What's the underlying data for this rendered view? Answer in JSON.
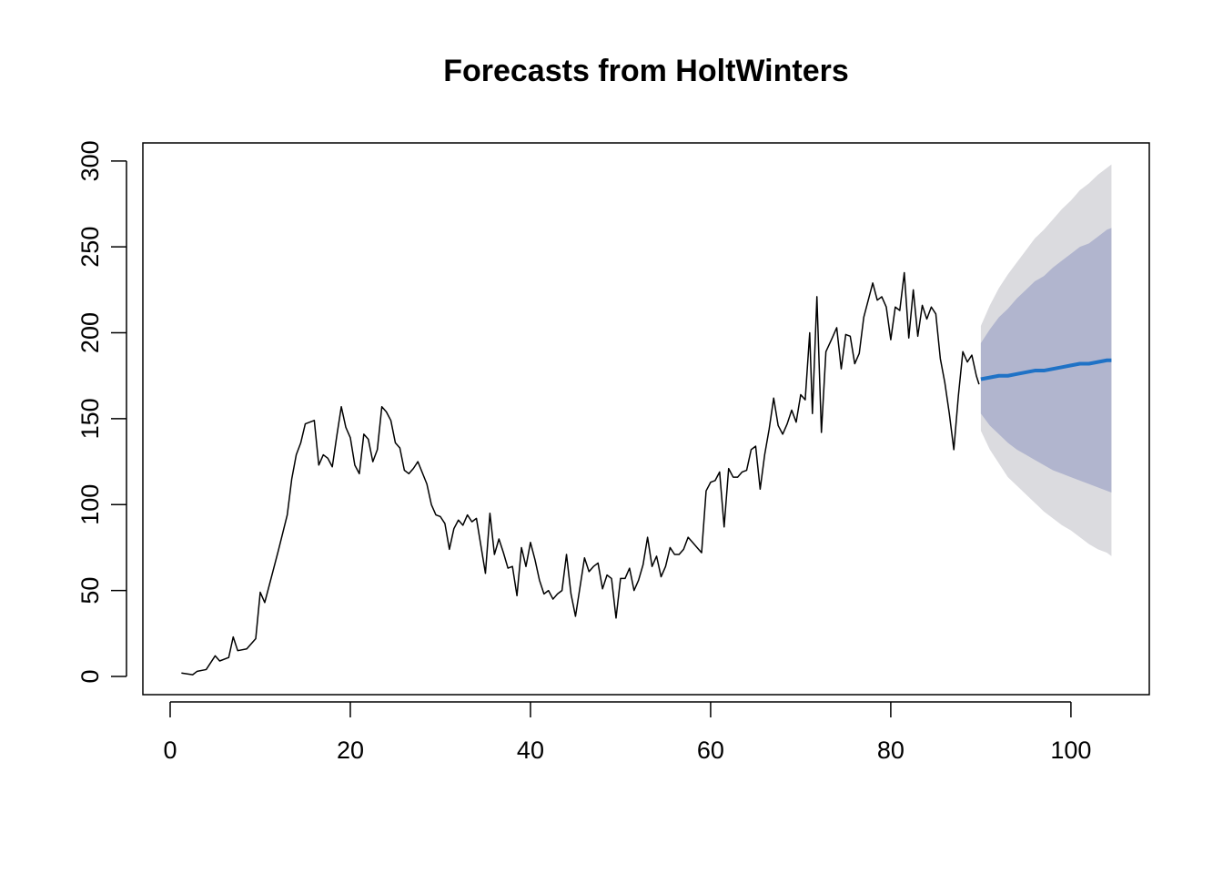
{
  "chart_data": {
    "type": "line",
    "title": "Forecasts from HoltWinters",
    "xlim": [
      -3.03,
      108.7
    ],
    "ylim": [
      -10.6,
      310.5
    ],
    "xticks": [
      0,
      20,
      40,
      60,
      80,
      100
    ],
    "yticks": [
      0,
      50,
      100,
      150,
      200,
      250,
      300
    ],
    "bands": [
      {
        "color": "#dbdbdf",
        "x": [
          90,
          91,
          92,
          93,
          94,
          95,
          96,
          97,
          98,
          99,
          100,
          101,
          102,
          103,
          104,
          104.5
        ],
        "lower": [
          143,
          132,
          124,
          116,
          111,
          106,
          101,
          96,
          92,
          88,
          85,
          81,
          77,
          74,
          72,
          70
        ],
        "upper": [
          204,
          216,
          226,
          234,
          241,
          248,
          255,
          260,
          266,
          272,
          277,
          283,
          287,
          292,
          296,
          298
        ]
      },
      {
        "color": "#b1b5ce",
        "x": [
          90,
          91,
          92,
          93,
          94,
          95,
          96,
          97,
          98,
          99,
          100,
          101,
          102,
          103,
          104,
          104.5
        ],
        "lower": [
          153,
          146,
          141,
          136,
          132,
          129,
          126,
          123,
          120,
          118,
          116,
          114,
          112,
          110,
          108,
          107
        ],
        "upper": [
          194,
          202,
          209,
          214,
          220,
          225,
          230,
          233,
          238,
          242,
          246,
          250,
          252,
          256,
          260,
          261
        ]
      }
    ],
    "series": [
      {
        "color": "#000000",
        "width": 1.5,
        "x": [
          1.25,
          2.5,
          3,
          4,
          5,
          5.5,
          6.5,
          7,
          7.5,
          8.5,
          9.5,
          10,
          10.5,
          12,
          13,
          13.5,
          14,
          14.5,
          15,
          16,
          16.5,
          17,
          17.5,
          18,
          18.5,
          19,
          19.5,
          20,
          20.5,
          21,
          21.5,
          22,
          22.5,
          23,
          23.5,
          24,
          24.5,
          25,
          25.5,
          26,
          26.5,
          27,
          27.5,
          28.5,
          29,
          29.5,
          30,
          30.5,
          31,
          31.5,
          32,
          32.5,
          33,
          33.5,
          34,
          35,
          35.5,
          36,
          36.5,
          37,
          37.5,
          38,
          38.5,
          39,
          39.5,
          40,
          40.5,
          41,
          41.5,
          42,
          42.5,
          43,
          43.5,
          44,
          44.5,
          45,
          46,
          46.5,
          47,
          47.5,
          48,
          48.5,
          49,
          49.5,
          50,
          50.5,
          51,
          51.5,
          52,
          52.5,
          53,
          53.5,
          54,
          54.5,
          55,
          55.5,
          56,
          56.5,
          57,
          57.5,
          58,
          58.5,
          59,
          59.5,
          60,
          60.5,
          61,
          61.5,
          62,
          62.5,
          63,
          63.5,
          64,
          64.5,
          65,
          65.5,
          66,
          66.5,
          67,
          67.5,
          68,
          68.5,
          69,
          69.5,
          70,
          70.5,
          71,
          71.3,
          71.8,
          72.3,
          72.8,
          73.5,
          74,
          74.5,
          75,
          75.5,
          76,
          76.5,
          77,
          78,
          78.5,
          79,
          79.5,
          80,
          80.5,
          81,
          81.5,
          82,
          82.5,
          83,
          83.5,
          84,
          84.5,
          85,
          85.5,
          86,
          86.5,
          87,
          87.5,
          88,
          88.5,
          89,
          89.5,
          89.8
        ],
        "values": [
          2,
          1,
          3,
          4,
          12,
          9,
          11,
          23,
          15,
          16,
          22,
          49,
          43,
          73,
          94,
          115,
          129,
          136,
          147,
          149,
          123,
          129,
          127,
          122,
          140,
          157,
          145,
          139,
          123,
          118,
          141,
          138,
          125,
          132,
          157,
          154,
          149,
          136,
          133,
          120,
          118,
          121,
          125,
          112,
          100,
          94,
          93,
          89,
          74,
          86,
          91,
          88,
          94,
          90,
          92,
          60,
          95,
          71,
          80,
          72,
          63,
          64,
          47,
          75,
          64,
          78,
          68,
          56,
          48,
          50,
          45,
          48,
          50,
          71,
          48,
          35,
          69,
          61,
          64,
          66,
          51,
          59,
          57,
          34,
          57,
          57,
          63,
          50,
          56,
          65,
          81,
          64,
          70,
          58,
          64,
          75,
          71,
          71,
          74,
          81,
          78,
          75,
          72,
          108,
          113,
          114,
          119,
          87,
          121,
          116,
          116,
          119,
          120,
          132,
          134,
          109,
          129,
          144,
          162,
          146,
          141,
          147,
          155,
          148,
          164,
          161,
          200,
          153,
          221,
          142,
          189,
          197,
          203,
          179,
          199,
          198,
          182,
          188,
          209,
          229,
          219,
          221,
          215,
          196,
          215,
          213,
          235,
          197,
          225,
          198,
          216,
          208,
          215,
          211,
          185,
          171,
          153,
          132,
          163,
          189,
          183,
          187,
          175,
          170
        ]
      },
      {
        "color": "#1f72c6",
        "width": 4,
        "x": [
          90,
          91,
          92,
          93,
          94,
          95,
          96,
          97,
          98,
          99,
          100,
          101,
          102,
          103,
          104,
          104.5
        ],
        "values": [
          173,
          174,
          175,
          175,
          176,
          177,
          178,
          178,
          179,
          180,
          181,
          182,
          182,
          183,
          184,
          184
        ]
      }
    ]
  }
}
